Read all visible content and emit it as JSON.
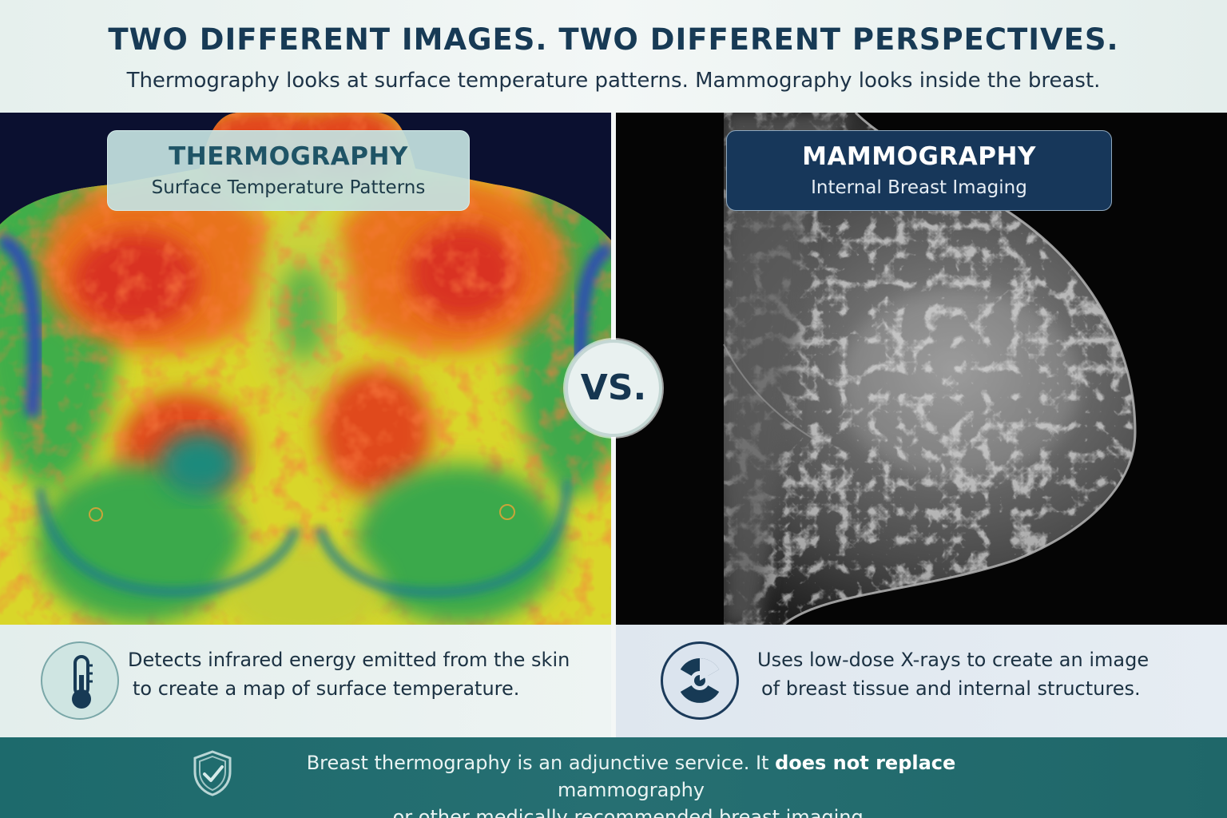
{
  "header": {
    "title": "TWO DIFFERENT IMAGES. TWO DIFFERENT PERSPECTIVES.",
    "subtitle": "Thermography looks at surface temperature patterns. Mammography looks inside the breast."
  },
  "left_panel": {
    "title": "THERMOGRAPHY",
    "subtitle": "Surface Temperature Patterns",
    "description_line1": "Detects infrared energy emitted from the skin",
    "description_line2": "to create a map of surface temperature.",
    "icon": "thermometer-icon",
    "image": "thermal-breast-image"
  },
  "right_panel": {
    "title": "MAMMOGRAPHY",
    "subtitle": "Internal Breast Imaging",
    "description_line1": "Uses low-dose X-rays to create an image",
    "description_line2": "of breast tissue and internal structures.",
    "icon": "radiation-icon",
    "image": "mammogram-image"
  },
  "vs_label": "VS.",
  "footer": {
    "icon": "shield-check-icon",
    "text_before": "Breast thermography is an adjunctive service. It ",
    "text_bold": "does not replace",
    "text_after": " mammography",
    "text_line2": "or other medically recommended breast imaging."
  },
  "colors": {
    "title": "#173a55",
    "navy": "#17375a",
    "teal": "#1d6a6c",
    "light_teal": "#c4e1e0"
  }
}
